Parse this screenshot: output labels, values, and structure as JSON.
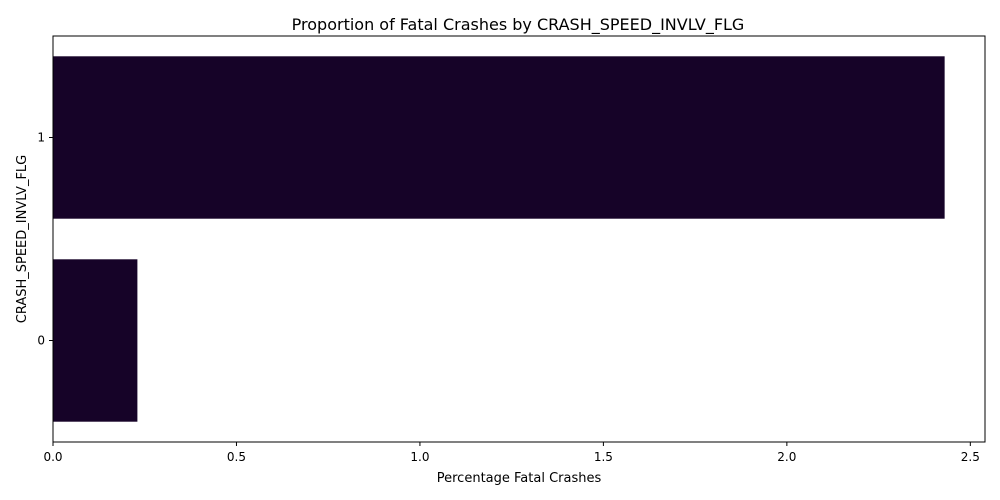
{
  "chart_data": {
    "type": "bar",
    "orientation": "horizontal",
    "title": "Proportion of Fatal Crashes by CRASH_SPEED_INVLV_FLG",
    "xlabel": "Percentage Fatal Crashes",
    "ylabel": "CRASH_SPEED_INVLV_FLG",
    "categories": [
      "1",
      "0"
    ],
    "values": [
      2.43,
      0.23
    ],
    "xlim": [
      0,
      2.54
    ],
    "xticks": [
      0.0,
      0.5,
      1.0,
      1.5,
      2.0,
      2.5
    ],
    "xtick_labels": [
      "0.0",
      "0.5",
      "1.0",
      "1.5",
      "2.0",
      "2.5"
    ],
    "bar_color": "#160328",
    "grid": false,
    "legend": "none"
  }
}
